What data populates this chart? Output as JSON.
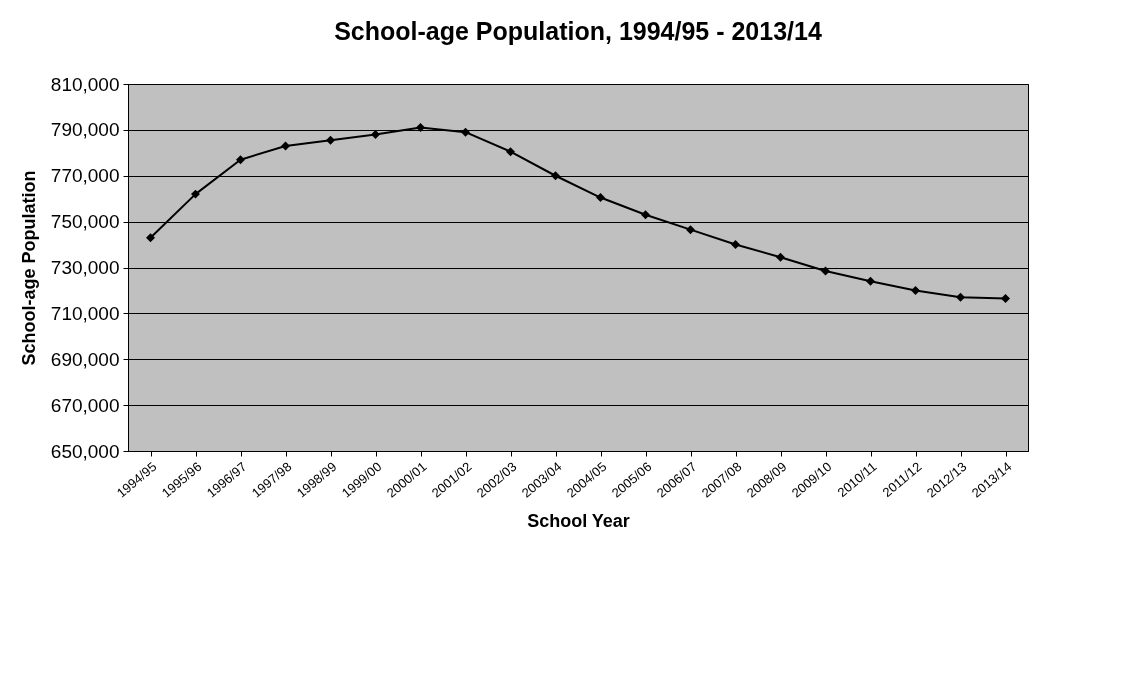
{
  "chart_data": {
    "type": "line",
    "title": "School-age Population, 1994/95 - 2013/14",
    "xlabel": "School Year",
    "ylabel": "School-age Population",
    "categories": [
      "1994/95",
      "1995/96",
      "1996/97",
      "1997/98",
      "1998/99",
      "1999/00",
      "2000/01",
      "2001/02",
      "2002/03",
      "2003/04",
      "2004/05",
      "2005/06",
      "2006/07",
      "2007/08",
      "2008/09",
      "2009/10",
      "2010/11",
      "2011/12",
      "2012/13",
      "2013/14"
    ],
    "series": [
      {
        "color": "#000000",
        "values": [
          743000,
          762000,
          777000,
          783000,
          785500,
          788000,
          791000,
          789000,
          780500,
          770000,
          760500,
          753000,
          746500,
          740000,
          734500,
          728500,
          724000,
          720000,
          717000,
          716500
        ]
      }
    ],
    "ylim": [
      650000,
      810000
    ],
    "yticks": [
      {
        "value": 650000,
        "label": "650,000"
      },
      {
        "value": 670000,
        "label": "670,000"
      },
      {
        "value": 690000,
        "label": "690,000"
      },
      {
        "value": 710000,
        "label": "710,000"
      },
      {
        "value": 730000,
        "label": "730,000"
      },
      {
        "value": 750000,
        "label": "750,000"
      },
      {
        "value": 770000,
        "label": "770,000"
      },
      {
        "value": 790000,
        "label": "790,000"
      },
      {
        "value": 810000,
        "label": "810,000"
      }
    ],
    "grid": "y",
    "marker": "diamond",
    "line_style": "solid"
  }
}
